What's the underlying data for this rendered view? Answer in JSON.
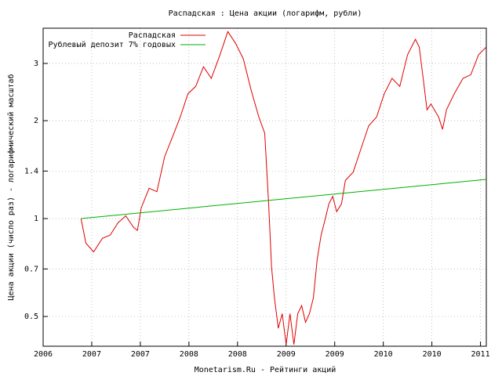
{
  "chart_data": {
    "type": "line",
    "title": "Распадская : Цена акции (логарифм, рубли)",
    "x_label": "Monetarism.Ru - Рейтинги акций",
    "y_label": "Цена акции (число раз) - логарифмический масштаб",
    "log_y": true,
    "grid": true,
    "legend": "top-left",
    "xlim": [
      2006,
      2010.56
    ],
    "ylim": [
      0.405,
      3.85
    ],
    "xticks": [
      {
        "value": 2006,
        "label": "2006"
      },
      {
        "value": 2006.5,
        "label": "2007"
      },
      {
        "value": 2007,
        "label": "2007"
      },
      {
        "value": 2007.5,
        "label": "2008"
      },
      {
        "value": 2008,
        "label": "2008"
      },
      {
        "value": 2008.5,
        "label": "2009"
      },
      {
        "value": 2009,
        "label": "2009"
      },
      {
        "value": 2009.5,
        "label": "2010"
      },
      {
        "value": 2010,
        "label": "2010"
      },
      {
        "value": 2010.5,
        "label": "2011"
      }
    ],
    "yticks": [
      0.5,
      0.7,
      1,
      1.4,
      2,
      3
    ],
    "series": [
      {
        "name": "Распадская",
        "color": "#e00000",
        "x": [
          2006.39,
          2006.44,
          2006.52,
          2006.61,
          2006.69,
          2006.77,
          2006.85,
          2006.93,
          2006.97,
          2007.01,
          2007.09,
          2007.17,
          2007.25,
          2007.33,
          2007.41,
          2007.49,
          2007.57,
          2007.65,
          2007.73,
          2007.82,
          2007.9,
          2007.98,
          2008.06,
          2008.14,
          2008.22,
          2008.28,
          2008.32,
          2008.35,
          2008.38,
          2008.42,
          2008.46,
          2008.5,
          2008.54,
          2008.58,
          2008.62,
          2008.66,
          2008.7,
          2008.74,
          2008.78,
          2008.82,
          2008.86,
          2008.9,
          2008.94,
          2008.98,
          2009.02,
          2009.07,
          2009.11,
          2009.19,
          2009.27,
          2009.35,
          2009.43,
          2009.51,
          2009.59,
          2009.67,
          2009.75,
          2009.83,
          2009.87,
          2009.91,
          2009.95,
          2009.99,
          2010.07,
          2010.11,
          2010.15,
          2010.23,
          2010.32,
          2010.4,
          2010.48,
          2010.56
        ],
        "values": [
          1.0,
          0.84,
          0.79,
          0.87,
          0.89,
          0.97,
          1.02,
          0.94,
          0.92,
          1.08,
          1.24,
          1.21,
          1.55,
          1.78,
          2.05,
          2.42,
          2.55,
          2.93,
          2.7,
          3.19,
          3.76,
          3.46,
          3.1,
          2.48,
          2.05,
          1.83,
          1.11,
          0.71,
          0.57,
          0.46,
          0.51,
          0.41,
          0.51,
          0.41,
          0.51,
          0.54,
          0.48,
          0.51,
          0.57,
          0.75,
          0.89,
          0.99,
          1.11,
          1.17,
          1.05,
          1.11,
          1.31,
          1.39,
          1.64,
          1.93,
          2.05,
          2.42,
          2.7,
          2.55,
          3.19,
          3.56,
          3.37,
          2.7,
          2.16,
          2.25,
          2.05,
          1.88,
          2.16,
          2.42,
          2.7,
          2.77,
          3.19,
          3.37
        ]
      },
      {
        "name": "Рублевый депозит 7% годовых",
        "color": "#00b000",
        "x": [
          2006.39,
          2010.56
        ],
        "values": [
          1.0,
          1.32
        ]
      }
    ]
  }
}
